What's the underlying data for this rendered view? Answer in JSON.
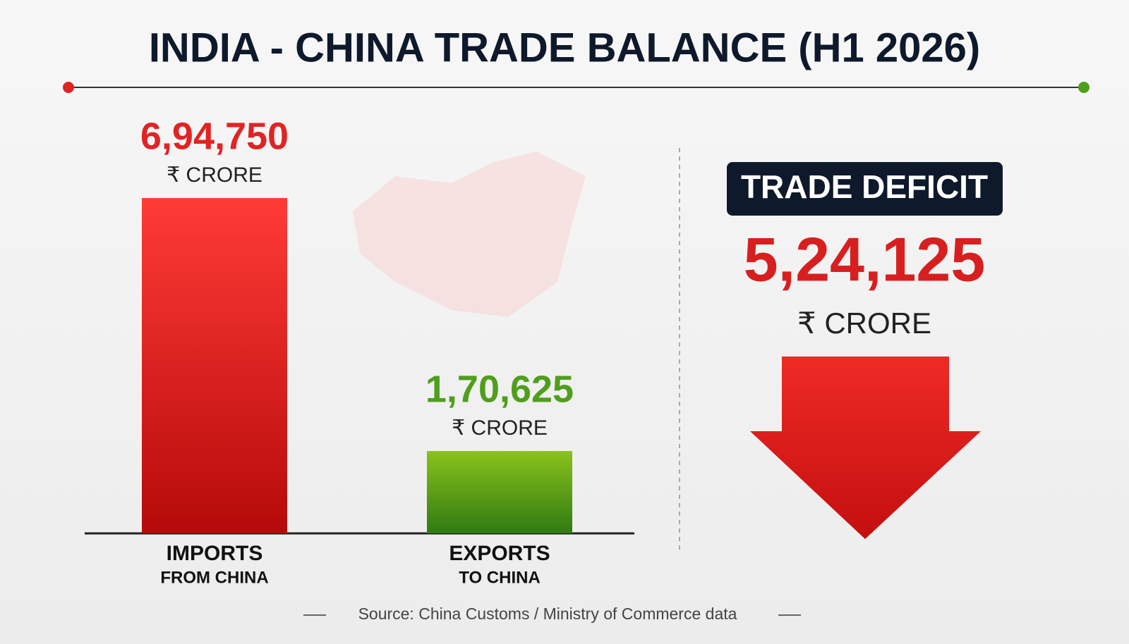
{
  "chart_data": {
    "type": "bar",
    "title": "INDIA - CHINA TRADE BALANCE (H1 2026)",
    "categories": [
      "IMPORTS",
      "EXPORTS"
    ],
    "category_sublabels": [
      "FROM CHINA",
      "TO CHINA"
    ],
    "values": [
      694750,
      170625
    ],
    "value_labels": [
      "6,94,750",
      "1,70,625"
    ],
    "unit": "₹ CRORE",
    "colors": [
      "#e02424",
      "#4f9e1c"
    ],
    "ylim": [
      0,
      800000
    ],
    "deficit": {
      "label": "TRADE DEFICIT",
      "value": 524125,
      "value_label": "5,24,125"
    },
    "source": "Source: China Customs / Ministry of Commerce data"
  }
}
